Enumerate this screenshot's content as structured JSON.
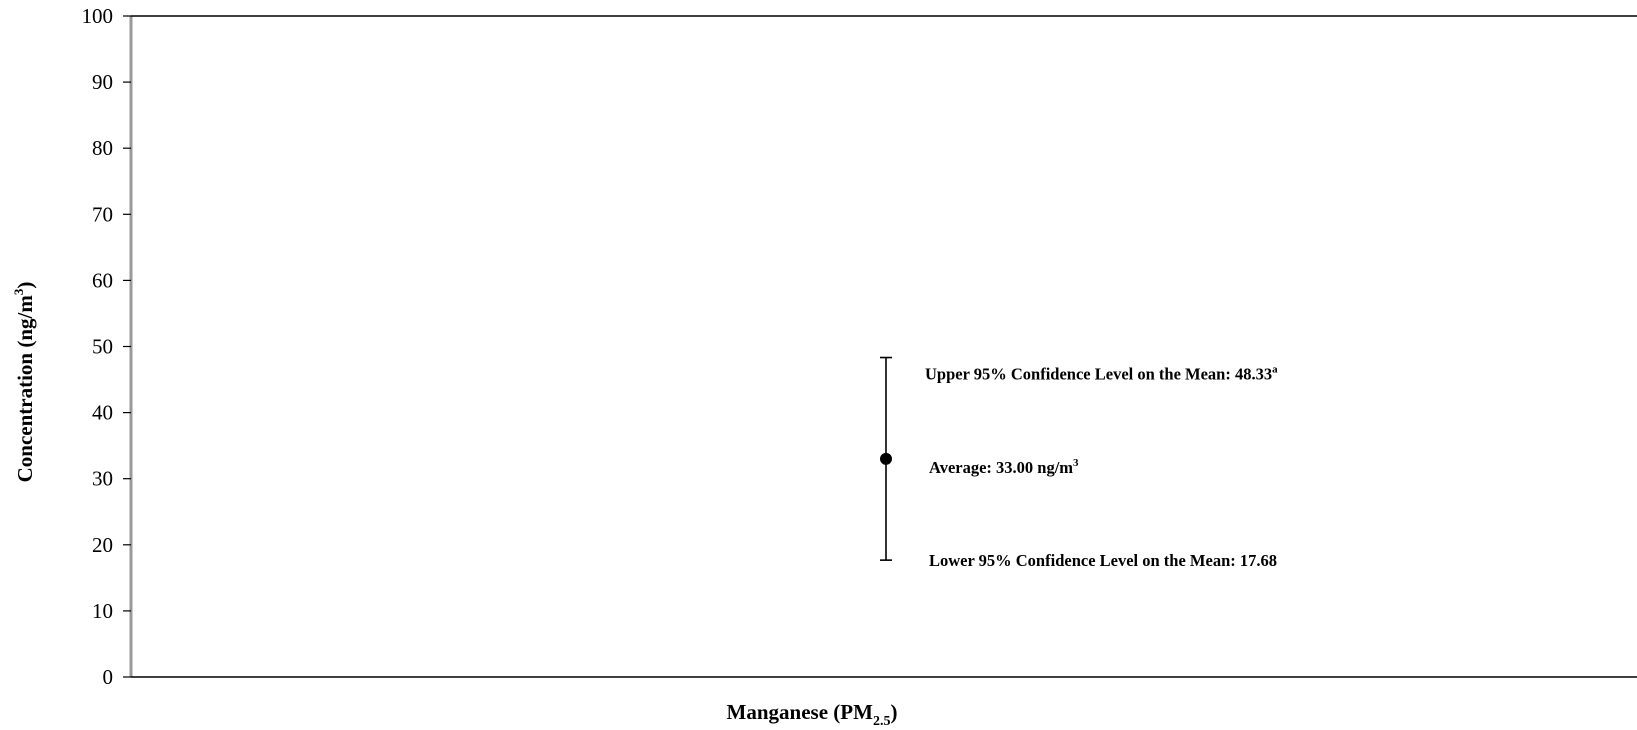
{
  "chart_data": {
    "type": "scatter",
    "xlabel": {
      "text": "Manganese (PM",
      "sub": "2.5",
      "end": ")"
    },
    "ylabel": {
      "text": "Concentration (ng/m",
      "sup": "3",
      "end": ")"
    },
    "ylim": [
      0,
      100
    ],
    "yticks": [
      "0",
      "10",
      "20",
      "30",
      "40",
      "50",
      "60",
      "70",
      "80",
      "90",
      "100"
    ],
    "grid": false,
    "point": {
      "mean": 33.0,
      "upper": 48.33,
      "lower": 17.68
    },
    "annotations": {
      "upper": {
        "text": "Upper 95% Confidence Level on the Mean: 48.33",
        "sup": "a"
      },
      "mean": {
        "text": "Average: 33.00 ng/m",
        "sup": "3"
      },
      "lower": {
        "text": "Lower 95% Confidence Level on the Mean: 17.68"
      }
    }
  }
}
